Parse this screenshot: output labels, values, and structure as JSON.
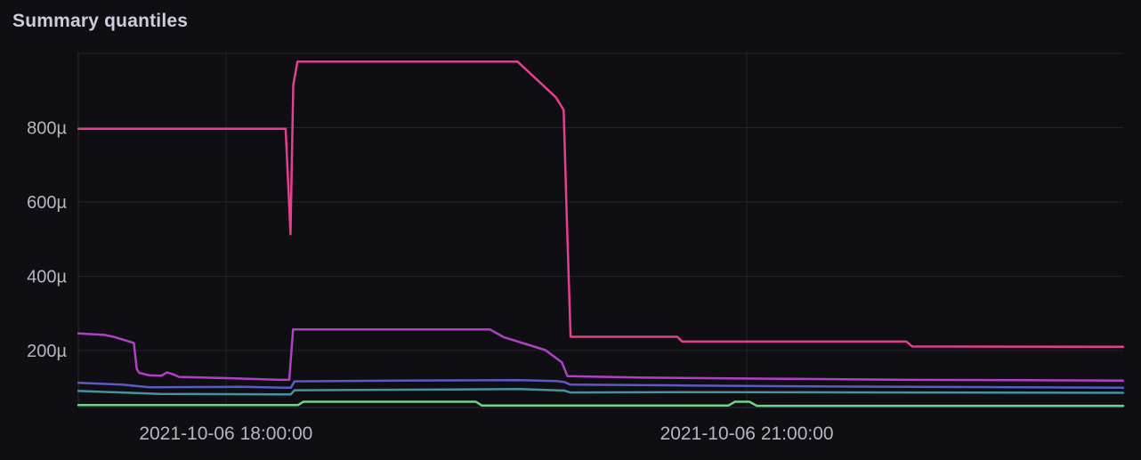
{
  "panel": {
    "title": "Summary quantiles"
  },
  "chart_data": {
    "type": "line",
    "title": "Summary quantiles",
    "xlabel": "",
    "ylabel": "",
    "legend": "none",
    "grid": true,
    "colors": {
      "background": "#0e0e13",
      "grid": "#222229",
      "axis_line": "#2c2c34",
      "axis_text": "#b5b6c0",
      "title_text": "#ccccdc"
    },
    "y_axis": {
      "unit": "microseconds",
      "domain": [
        46.5,
        1005
      ],
      "ticks": [
        {
          "value": 200,
          "label": "200µ"
        },
        {
          "value": 400,
          "label": "400µ"
        },
        {
          "value": 600,
          "label": "600µ"
        },
        {
          "value": 800,
          "label": "800µ"
        },
        {
          "value": 1000,
          "label": ""
        }
      ]
    },
    "x_axis": {
      "unit": "time",
      "domain_hours": [
        17.15,
        23.168
      ],
      "ticks": [
        {
          "hour": 18.0,
          "label": "2021-10-06 18:00:00"
        },
        {
          "hour": 21.0,
          "label": "2021-10-06 21:00:00"
        }
      ]
    },
    "series": [
      {
        "name": "green",
        "color": "#70d38c",
        "points": [
          [
            17.15,
            53
          ],
          [
            18.415,
            53
          ],
          [
            18.447,
            62
          ],
          [
            19.44,
            62
          ],
          [
            19.473,
            52
          ],
          [
            20.895,
            52
          ],
          [
            20.932,
            62
          ],
          [
            21.015,
            62
          ],
          [
            21.058,
            51
          ],
          [
            23.168,
            51
          ]
        ]
      },
      {
        "name": "teal",
        "color": "#46939e",
        "points": [
          [
            17.15,
            91
          ],
          [
            17.45,
            86
          ],
          [
            17.62,
            83
          ],
          [
            18.31,
            82
          ],
          [
            18.374,
            82
          ],
          [
            18.395,
            93
          ],
          [
            19.3,
            95
          ],
          [
            19.69,
            96
          ],
          [
            19.95,
            92
          ],
          [
            19.983,
            87
          ],
          [
            20.8,
            88
          ],
          [
            21.93,
            87
          ],
          [
            23.168,
            86
          ]
        ]
      },
      {
        "name": "indigo",
        "color": "#5d5ac8",
        "points": [
          [
            17.15,
            113
          ],
          [
            17.4,
            108
          ],
          [
            17.56,
            101
          ],
          [
            18.1,
            102
          ],
          [
            18.34,
            100
          ],
          [
            18.374,
            100
          ],
          [
            18.395,
            117
          ],
          [
            19.0,
            119
          ],
          [
            19.69,
            120
          ],
          [
            19.9,
            118
          ],
          [
            19.95,
            115
          ],
          [
            19.983,
            108
          ],
          [
            20.62,
            106
          ],
          [
            21.5,
            103
          ],
          [
            21.93,
            102
          ],
          [
            23.168,
            100
          ]
        ]
      },
      {
        "name": "purple",
        "color": "#b140c6",
        "points": [
          [
            17.15,
            246
          ],
          [
            17.3,
            242
          ],
          [
            17.36,
            236
          ],
          [
            17.43,
            226
          ],
          [
            17.47,
            220
          ],
          [
            17.487,
            150
          ],
          [
            17.5,
            140
          ],
          [
            17.56,
            133
          ],
          [
            17.63,
            132
          ],
          [
            17.66,
            141
          ],
          [
            17.69,
            137
          ],
          [
            17.73,
            129
          ],
          [
            18.05,
            125
          ],
          [
            18.31,
            121
          ],
          [
            18.365,
            121
          ],
          [
            18.387,
            257
          ],
          [
            19.52,
            257
          ],
          [
            19.6,
            236
          ],
          [
            19.84,
            201
          ],
          [
            19.935,
            168
          ],
          [
            19.967,
            131
          ],
          [
            20.4,
            127
          ],
          [
            21.2,
            124
          ],
          [
            21.93,
            121
          ],
          [
            23.168,
            119
          ]
        ]
      },
      {
        "name": "pink",
        "color": "#e3408d",
        "points": [
          [
            17.15,
            797
          ],
          [
            18.344,
            797
          ],
          [
            18.36,
            640
          ],
          [
            18.372,
            513
          ],
          [
            18.388,
            915
          ],
          [
            18.412,
            978
          ],
          [
            19.68,
            978
          ],
          [
            19.9,
            882
          ],
          [
            19.945,
            848
          ],
          [
            19.963,
            560
          ],
          [
            19.985,
            237
          ],
          [
            20.6,
            237
          ],
          [
            20.628,
            224
          ],
          [
            21.92,
            224
          ],
          [
            21.953,
            211
          ],
          [
            23.168,
            210
          ]
        ]
      }
    ]
  }
}
